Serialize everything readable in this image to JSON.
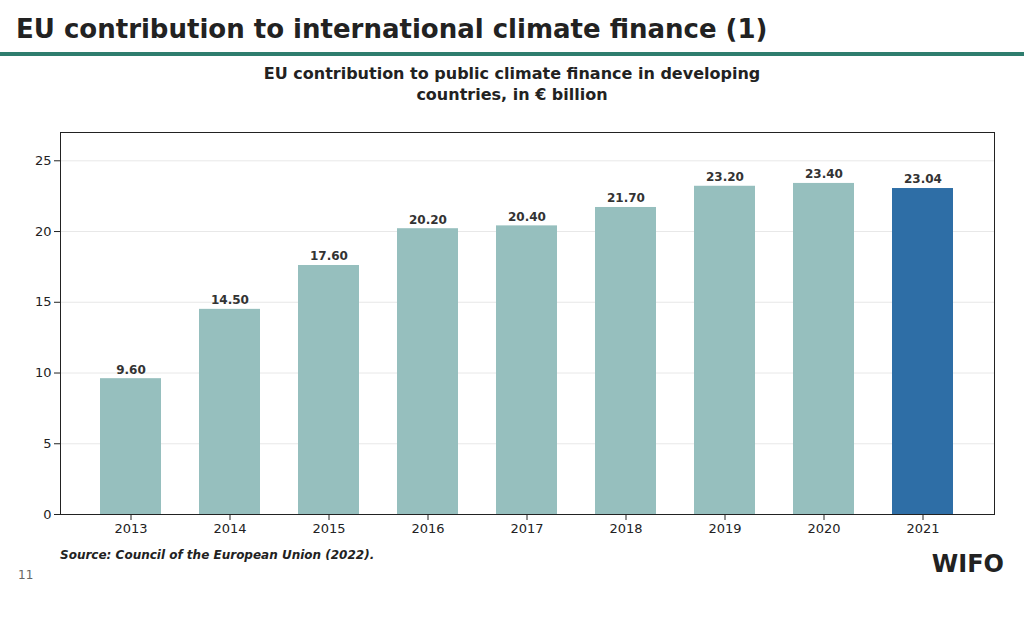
{
  "chart_data": {
    "type": "bar",
    "title": "EU contribution to international climate finance (1)",
    "subtitle": "EU contribution to public climate finance in developing\ncountries, in € billion",
    "categories": [
      "2013",
      "2014",
      "2015",
      "2016",
      "2017",
      "2018",
      "2019",
      "2020",
      "2021"
    ],
    "values": [
      9.6,
      14.5,
      17.6,
      20.2,
      20.4,
      21.7,
      23.2,
      23.4,
      23.04
    ],
    "value_labels": [
      "9.60",
      "14.50",
      "17.60",
      "20.20",
      "20.40",
      "21.70",
      "23.20",
      "23.40",
      "23.04"
    ],
    "colors": [
      "#96bfbe",
      "#96bfbe",
      "#96bfbe",
      "#96bfbe",
      "#96bfbe",
      "#96bfbe",
      "#96bfbe",
      "#96bfbe",
      "#2e6ea6"
    ],
    "ylim": [
      0,
      27
    ],
    "yticks": [
      0,
      5,
      10,
      15,
      20,
      25
    ],
    "grid": true,
    "data_labels": true,
    "annotations": [
      "Source: Council of the European Union (2022).",
      "11",
      "WIFO"
    ]
  }
}
